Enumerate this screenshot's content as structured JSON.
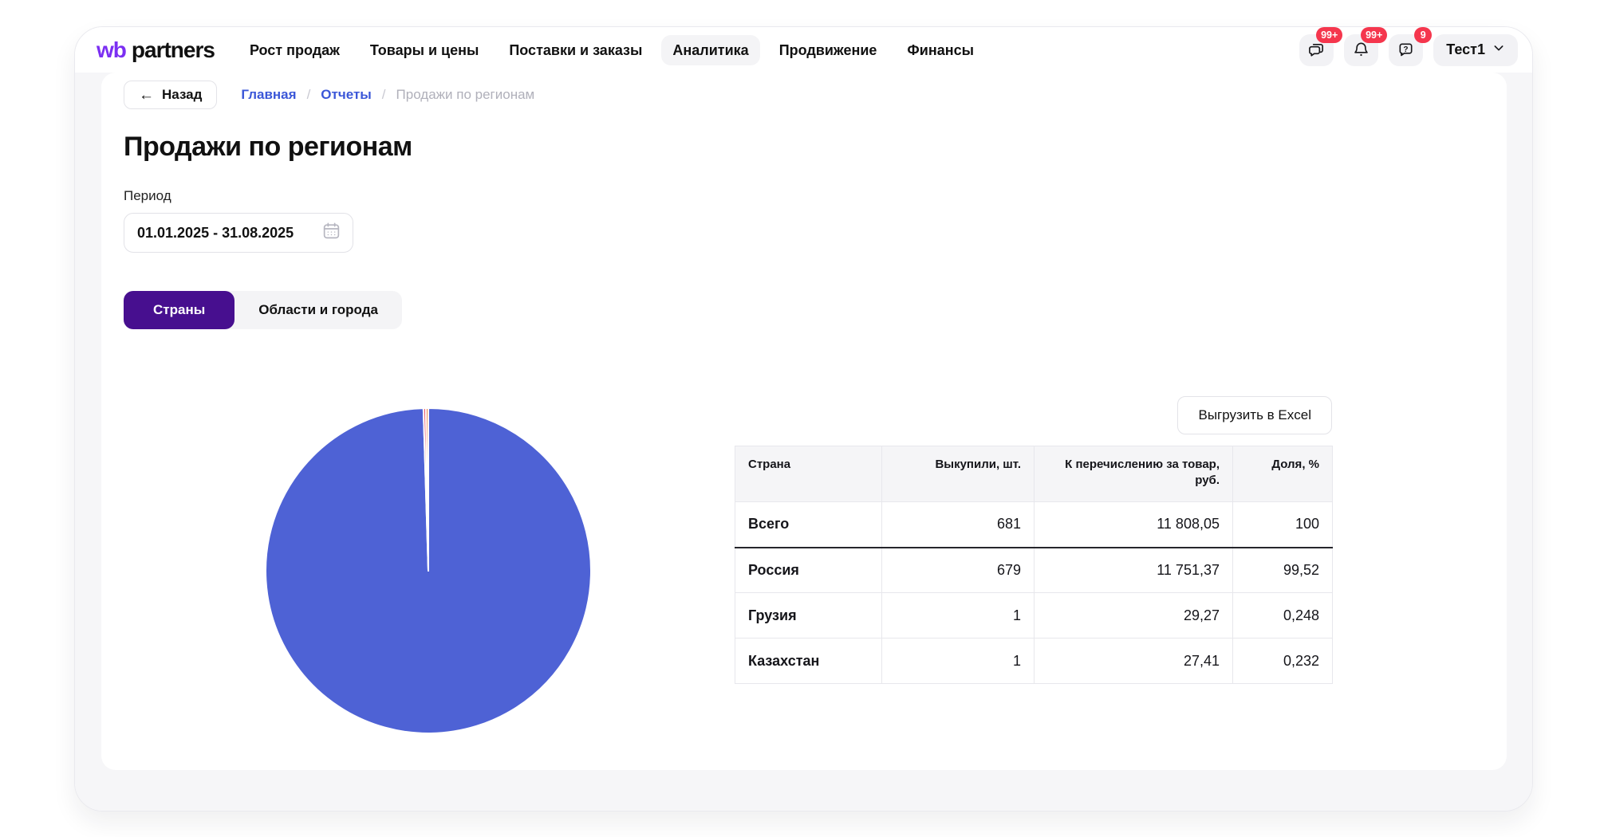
{
  "brand": {
    "logo_wb": "wb",
    "logo_partners": "partners"
  },
  "nav": {
    "items": [
      {
        "label": "Рост продаж",
        "active": false
      },
      {
        "label": "Товары и цены",
        "active": false
      },
      {
        "label": "Поставки и заказы",
        "active": false
      },
      {
        "label": "Аналитика",
        "active": true
      },
      {
        "label": "Продвижение",
        "active": false
      },
      {
        "label": "Финансы",
        "active": false
      }
    ]
  },
  "header": {
    "chat_badge": "99+",
    "notifications_badge": "99+",
    "help_badge": "9",
    "help_glyph": "?",
    "account": "Тест1"
  },
  "breadcrumb": {
    "back_arrow": "←",
    "back": "Назад",
    "separator": "/",
    "links": [
      {
        "label": "Главная"
      },
      {
        "label": "Отчеты"
      }
    ],
    "current": "Продажи по регионам"
  },
  "page": {
    "title": "Продажи по регионам"
  },
  "period": {
    "label": "Период",
    "value": "01.01.2025 - 31.08.2025"
  },
  "tabs": [
    {
      "label": "Страны",
      "active": true
    },
    {
      "label": "Области и города",
      "active": false
    }
  ],
  "export_button": "Выгрузить в Excel",
  "table": {
    "headers": [
      "Страна",
      "Выкупили, шт.",
      "К перечислению за товар, руб.",
      "Доля, %"
    ],
    "rows": [
      {
        "country": "Всего",
        "units": "681",
        "amount": "11 808,05",
        "share": "100"
      },
      {
        "country": "Россия",
        "units": "679",
        "amount": "11 751,37",
        "share": "99,52"
      },
      {
        "country": "Грузия",
        "units": "1",
        "amount": "29,27",
        "share": "0,248"
      },
      {
        "country": "Казахстан",
        "units": "1",
        "amount": "27,41",
        "share": "0,232"
      }
    ]
  },
  "chart_data": {
    "type": "pie",
    "labels": [
      "Россия",
      "Грузия",
      "Казахстан"
    ],
    "values": [
      99.52,
      0.248,
      0.232
    ],
    "unit": "%",
    "colors": [
      "#4e62d5",
      "#e8566a",
      "#ef7f3a"
    ],
    "start_angle_deg": -90,
    "direction": "clockwise",
    "legend": "none",
    "slice_border_color": "#ffffff"
  },
  "colors": {
    "accent_purple": "#470f8f",
    "logo_purple": "#7b2ff2",
    "link_blue": "#3b57d8",
    "badge_red": "#f5364d",
    "pie_blue": "#4e62d5",
    "app_background": "#f6f6f8"
  }
}
